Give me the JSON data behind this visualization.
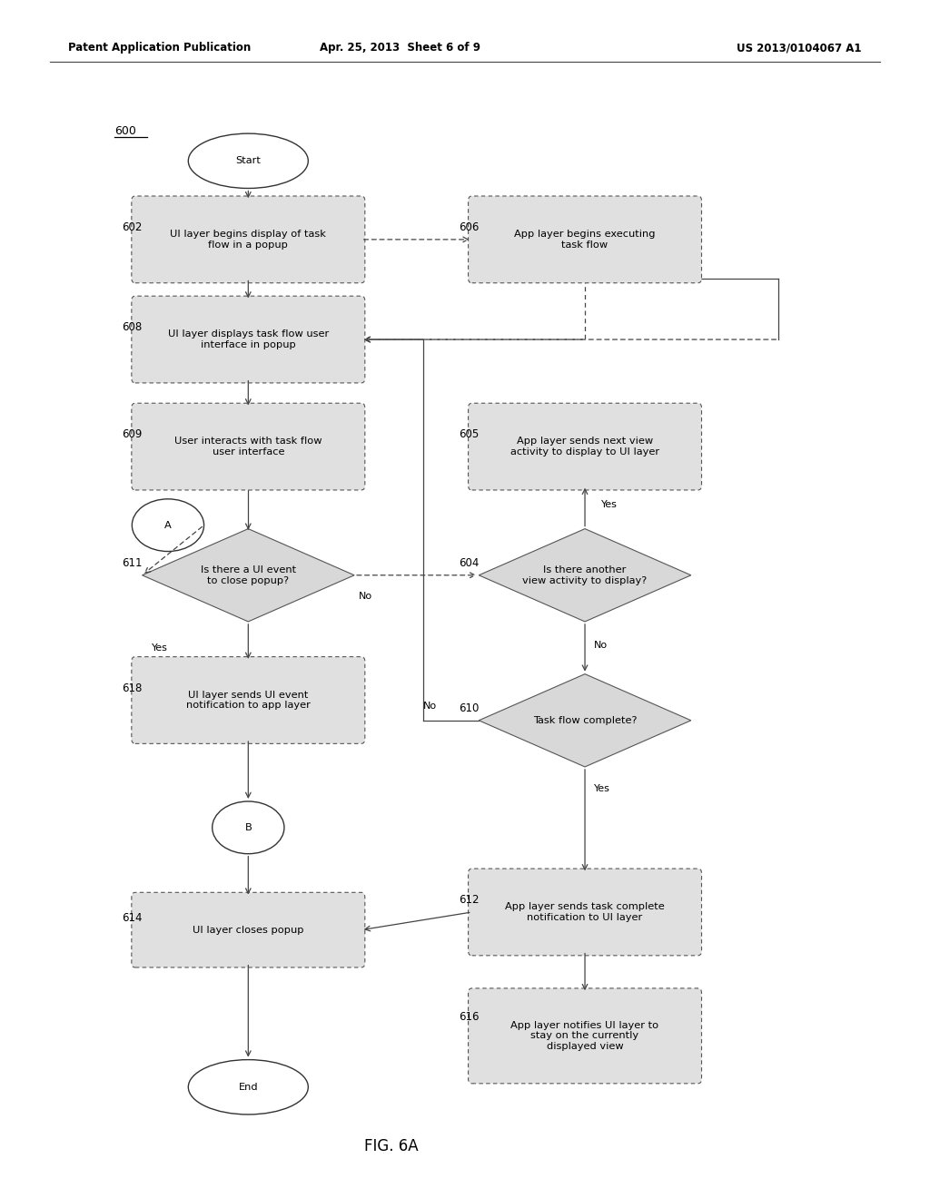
{
  "title_left": "Patent Application Publication",
  "title_center": "Apr. 25, 2013  Sheet 6 of 9",
  "title_right": "US 2013/0104067 A1",
  "fig_label": "FIG. 6A",
  "diagram_label": "600",
  "bg_color": "#ffffff",
  "box_fill": "#e0e0e0",
  "box_edge": "#555555",
  "diamond_fill": "#d8d8d8",
  "diamond_edge": "#555555",
  "circle_fill": "#ffffff",
  "circle_edge": "#333333",
  "arrow_color": "#444444",
  "text_color": "#000000",
  "font_size": 8.2
}
